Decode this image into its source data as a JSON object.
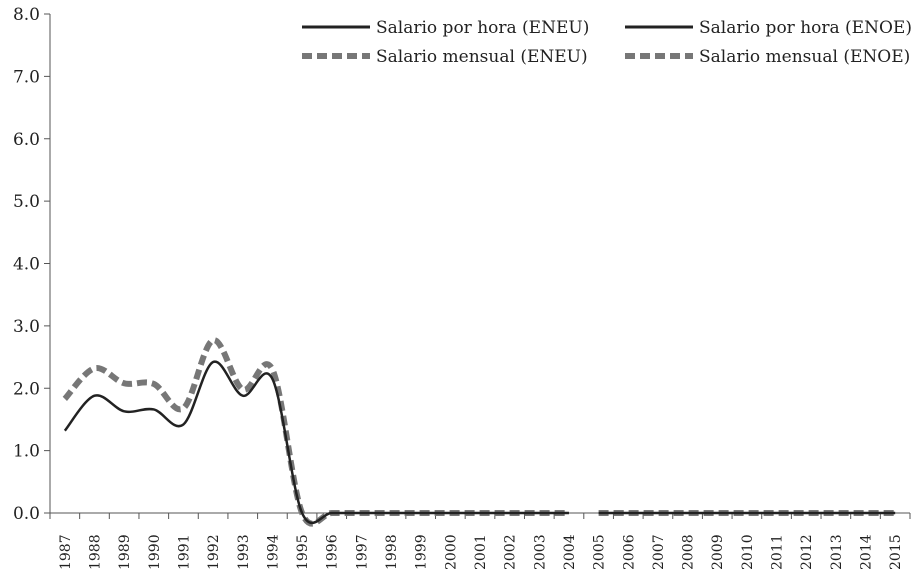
{
  "chart_data": {
    "type": "line",
    "title": "",
    "xlabel": "",
    "ylabel": "",
    "ylim": [
      0,
      8
    ],
    "yticks": [
      "0.0",
      "1.0",
      "2.0",
      "3.0",
      "4.0",
      "5.0",
      "6.0",
      "7.0",
      "8.0"
    ],
    "grid": false,
    "legend_position": "top-right",
    "categories": [
      "1987",
      "1988",
      "1989",
      "1990",
      "1991",
      "1992",
      "1993",
      "1994",
      "1995",
      "1996",
      "1997",
      "1998",
      "1999",
      "2000",
      "2001",
      "2002",
      "2003",
      "2004",
      "2005",
      "2006",
      "2007",
      "2008",
      "2009",
      "2010",
      "2011",
      "2012",
      "2013",
      "2014",
      "2015"
    ],
    "series": [
      {
        "name": "Salario por hora (ENEU)",
        "style": "solid",
        "color": "#222222",
        "values": [
          1.32,
          1.88,
          1.63,
          1.66,
          1.42,
          2.42,
          1.88,
          2.15,
          0.0,
          0.0,
          0.0,
          0.0,
          0.0,
          0.0,
          0.0,
          0.0,
          0.0,
          0.0,
          null,
          null,
          null,
          null,
          null,
          null,
          null,
          null,
          null,
          null,
          null
        ]
      },
      {
        "name": "Salario mensual (ENEU)",
        "style": "dashed",
        "color": "#777777",
        "values": [
          1.83,
          2.32,
          2.08,
          2.07,
          1.68,
          2.77,
          1.98,
          2.3,
          0.0,
          0.0,
          0.0,
          0.0,
          0.0,
          0.0,
          0.0,
          0.0,
          0.0,
          0.0,
          null,
          null,
          null,
          null,
          null,
          null,
          null,
          null,
          null,
          null,
          null
        ]
      },
      {
        "name": "Salario por hora (ENOE)",
        "style": "solid",
        "color": "#222222",
        "values": [
          null,
          null,
          null,
          null,
          null,
          null,
          null,
          null,
          null,
          null,
          null,
          null,
          null,
          null,
          null,
          null,
          null,
          null,
          0.0,
          0.0,
          0.0,
          0.0,
          0.0,
          0.0,
          0.0,
          0.0,
          0.0,
          0.0,
          0.0
        ]
      },
      {
        "name": "Salario mensual (ENOE)",
        "style": "dashed",
        "color": "#777777",
        "values": [
          null,
          null,
          null,
          null,
          null,
          null,
          null,
          null,
          null,
          null,
          null,
          null,
          null,
          null,
          null,
          null,
          null,
          null,
          0.0,
          0.0,
          0.0,
          0.0,
          0.0,
          0.0,
          0.0,
          0.0,
          0.0,
          0.0,
          0.0
        ]
      }
    ]
  }
}
